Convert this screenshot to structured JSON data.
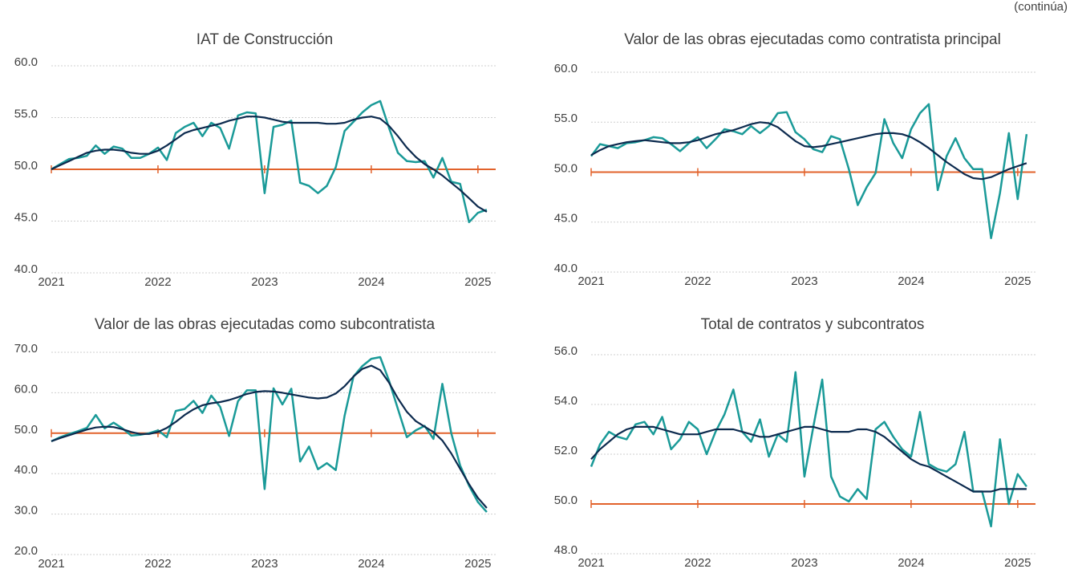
{
  "header": {
    "note": "(continúa)"
  },
  "chart_data": [
    {
      "type": "line",
      "title": "IAT de Construcción",
      "categories": [
        "2021",
        null,
        null,
        null,
        null,
        null,
        null,
        null,
        null,
        null,
        null,
        null,
        "2022",
        null,
        null,
        null,
        null,
        null,
        null,
        null,
        null,
        null,
        null,
        null,
        "2023",
        null,
        null,
        null,
        null,
        null,
        null,
        null,
        null,
        null,
        null,
        null,
        "2024",
        null,
        null,
        null,
        null,
        null,
        null,
        null,
        null,
        null,
        null,
        null,
        "2025",
        null
      ],
      "series": [
        {
          "color": "#1a9a98",
          "values": [
            50.0,
            50.5,
            51.0,
            51.1,
            51.3,
            52.3,
            51.5,
            52.2,
            52.0,
            51.1,
            51.1,
            51.5,
            52.1,
            50.9,
            53.5,
            54.1,
            54.5,
            53.2,
            54.5,
            54.0,
            52.0,
            55.2,
            55.5,
            55.4,
            47.7,
            54.1,
            54.3,
            54.7,
            48.7,
            48.4,
            47.7,
            48.4,
            50.2,
            53.7,
            54.6,
            55.5,
            56.2,
            56.6,
            54.0,
            51.6,
            50.8,
            50.7,
            50.8,
            49.2,
            51.1,
            48.8,
            48.6,
            44.9,
            45.8,
            46.1
          ]
        },
        {
          "color": "#0c2a4e",
          "values": [
            50.0,
            50.4,
            50.8,
            51.2,
            51.6,
            51.8,
            51.9,
            51.9,
            51.8,
            51.6,
            51.5,
            51.5,
            51.8,
            52.3,
            52.9,
            53.5,
            53.8,
            54.0,
            54.2,
            54.4,
            54.7,
            54.9,
            55.1,
            55.1,
            55.0,
            54.8,
            54.6,
            54.5,
            54.5,
            54.5,
            54.5,
            54.4,
            54.4,
            54.5,
            54.8,
            55.0,
            55.1,
            54.9,
            54.2,
            53.2,
            52.1,
            51.2,
            50.5,
            50.0,
            49.4,
            48.7,
            48.0,
            47.2,
            46.4,
            45.9
          ]
        }
      ],
      "ylim": [
        40,
        60
      ],
      "yticks": [
        {
          "value": 40,
          "label": "40.0"
        },
        {
          "value": 45,
          "label": "45.0"
        },
        {
          "value": 50,
          "label": "50.0"
        },
        {
          "value": 55,
          "label": "55.0"
        },
        {
          "value": 60,
          "label": "60.0"
        }
      ],
      "grid": true,
      "reference_line": {
        "value": 50,
        "color": "#e2622b"
      }
    },
    {
      "type": "line",
      "title": "Valor de las obras ejecutadas como contratista principal",
      "categories": [
        "2021",
        null,
        null,
        null,
        null,
        null,
        null,
        null,
        null,
        null,
        null,
        null,
        "2022",
        null,
        null,
        null,
        null,
        null,
        null,
        null,
        null,
        null,
        null,
        null,
        "2023",
        null,
        null,
        null,
        null,
        null,
        null,
        null,
        null,
        null,
        null,
        null,
        "2024",
        null,
        null,
        null,
        null,
        null,
        null,
        null,
        null,
        null,
        null,
        null,
        "2025",
        null
      ],
      "series": [
        {
          "color": "#1a9a98",
          "values": [
            51.6,
            52.8,
            52.6,
            52.4,
            52.9,
            53.0,
            53.2,
            53.5,
            53.4,
            52.8,
            52.1,
            52.9,
            53.5,
            52.4,
            53.3,
            54.3,
            54.1,
            53.8,
            54.6,
            53.9,
            54.6,
            55.9,
            56.0,
            54.0,
            53.3,
            52.3,
            52.0,
            53.6,
            53.3,
            50.3,
            46.7,
            48.5,
            49.9,
            55.3,
            52.9,
            51.4,
            54.3,
            55.9,
            56.8,
            48.2,
            51.6,
            53.4,
            51.4,
            50.3,
            50.3,
            43.4,
            47.9,
            53.9,
            47.3,
            53.8
          ]
        },
        {
          "color": "#0c2a4e",
          "values": [
            51.7,
            52.2,
            52.6,
            52.8,
            53.0,
            53.1,
            53.2,
            53.1,
            53.0,
            52.9,
            52.9,
            53.0,
            53.2,
            53.5,
            53.8,
            54.0,
            54.2,
            54.5,
            54.8,
            55.0,
            54.9,
            54.5,
            53.8,
            53.1,
            52.6,
            52.5,
            52.6,
            52.8,
            53.0,
            53.2,
            53.4,
            53.6,
            53.8,
            53.9,
            53.9,
            53.8,
            53.5,
            53.0,
            52.4,
            51.7,
            51.0,
            50.4,
            49.8,
            49.4,
            49.3,
            49.5,
            49.9,
            50.3,
            50.6,
            50.9
          ]
        }
      ],
      "ylim": [
        40,
        60
      ],
      "yticks": [
        {
          "value": 40,
          "label": "40.0"
        },
        {
          "value": 45,
          "label": "45.0"
        },
        {
          "value": 50,
          "label": "50.0"
        },
        {
          "value": 55,
          "label": "55.0"
        },
        {
          "value": 60,
          "label": "60.0"
        }
      ],
      "grid": true,
      "reference_line": {
        "value": 50,
        "color": "#e2622b"
      }
    },
    {
      "type": "line",
      "title": "Valor de las obras ejecutadas como subcontratista",
      "categories": [
        "2021",
        null,
        null,
        null,
        null,
        null,
        null,
        null,
        null,
        null,
        null,
        null,
        "2022",
        null,
        null,
        null,
        null,
        null,
        null,
        null,
        null,
        null,
        null,
        null,
        "2023",
        null,
        null,
        null,
        null,
        null,
        null,
        null,
        null,
        null,
        null,
        null,
        "2024",
        null,
        null,
        null,
        null,
        null,
        null,
        null,
        null,
        null,
        null,
        null,
        "2025",
        null
      ],
      "series": [
        {
          "color": "#1a9a98",
          "values": [
            48.0,
            49.0,
            49.8,
            50.5,
            51.3,
            54.5,
            51.2,
            52.6,
            51.2,
            49.4,
            49.6,
            50.0,
            50.7,
            49.0,
            55.5,
            56.0,
            58.0,
            55.0,
            59.3,
            56.5,
            49.3,
            57.9,
            60.6,
            60.6,
            36.2,
            61.1,
            57.1,
            61.0,
            43.0,
            46.7,
            41.1,
            42.6,
            40.9,
            54.3,
            64.0,
            66.6,
            68.4,
            68.8,
            63.0,
            56.0,
            49.0,
            50.7,
            51.8,
            48.6,
            62.2,
            50.0,
            42.0,
            37.0,
            33.0,
            30.5
          ]
        },
        {
          "color": "#0c2a4e",
          "values": [
            48.0,
            48.8,
            49.5,
            50.2,
            50.9,
            51.4,
            51.6,
            51.5,
            51.0,
            50.3,
            49.8,
            49.8,
            50.3,
            51.3,
            52.8,
            54.5,
            55.9,
            56.9,
            57.4,
            57.7,
            58.2,
            58.9,
            59.7,
            60.2,
            60.4,
            60.3,
            60.0,
            59.6,
            59.2,
            58.8,
            58.6,
            58.8,
            59.8,
            61.6,
            64.0,
            65.9,
            66.7,
            65.6,
            62.5,
            58.6,
            55.3,
            53.0,
            51.6,
            50.3,
            48.2,
            45.0,
            41.2,
            37.4,
            34.0,
            31.5
          ]
        }
      ],
      "ylim": [
        20,
        70
      ],
      "yticks": [
        {
          "value": 20,
          "label": "20.0"
        },
        {
          "value": 30,
          "label": "30.0"
        },
        {
          "value": 40,
          "label": "40.0"
        },
        {
          "value": 50,
          "label": "50.0"
        },
        {
          "value": 60,
          "label": "60.0"
        },
        {
          "value": 70,
          "label": "70.0"
        }
      ],
      "grid": true,
      "reference_line": {
        "value": 50,
        "color": "#e2622b"
      }
    },
    {
      "type": "line",
      "title": "Total de contratos y subcontratos",
      "categories": [
        "2021",
        null,
        null,
        null,
        null,
        null,
        null,
        null,
        null,
        null,
        null,
        null,
        "2022",
        null,
        null,
        null,
        null,
        null,
        null,
        null,
        null,
        null,
        null,
        null,
        "2023",
        null,
        null,
        null,
        null,
        null,
        null,
        null,
        null,
        null,
        null,
        null,
        "2024",
        null,
        null,
        null,
        null,
        null,
        null,
        null,
        null,
        null,
        null,
        null,
        "2025",
        null
      ],
      "series": [
        {
          "color": "#1a9a98",
          "values": [
            51.5,
            52.4,
            52.9,
            52.7,
            52.6,
            53.2,
            53.3,
            52.8,
            53.5,
            52.2,
            52.6,
            53.3,
            53.0,
            52.0,
            52.9,
            53.6,
            54.6,
            52.9,
            52.5,
            53.4,
            51.9,
            52.8,
            52.5,
            55.3,
            51.1,
            53.1,
            55.0,
            51.1,
            50.3,
            50.1,
            50.6,
            50.2,
            53.0,
            53.3,
            52.7,
            52.2,
            51.9,
            53.7,
            51.6,
            51.4,
            51.3,
            51.6,
            52.9,
            50.5,
            50.5,
            49.1,
            52.6,
            50.0,
            51.2,
            50.7
          ]
        },
        {
          "color": "#0c2a4e",
          "values": [
            51.8,
            52.2,
            52.5,
            52.8,
            53.0,
            53.1,
            53.1,
            53.1,
            53.0,
            52.9,
            52.8,
            52.8,
            52.8,
            52.9,
            53.0,
            53.0,
            53.0,
            52.9,
            52.8,
            52.7,
            52.7,
            52.8,
            52.9,
            53.0,
            53.1,
            53.1,
            53.0,
            52.9,
            52.9,
            52.9,
            53.0,
            53.0,
            52.9,
            52.7,
            52.4,
            52.1,
            51.8,
            51.6,
            51.5,
            51.3,
            51.1,
            50.9,
            50.7,
            50.5,
            50.5,
            50.5,
            50.6,
            50.6,
            50.6,
            50.6
          ]
        }
      ],
      "ylim": [
        48,
        56
      ],
      "yticks": [
        {
          "value": 48,
          "label": "48.0"
        },
        {
          "value": 50,
          "label": "50.0"
        },
        {
          "value": 52,
          "label": "52.0"
        },
        {
          "value": 54,
          "label": "54.0"
        },
        {
          "value": 56,
          "label": "56.0"
        }
      ],
      "grid": true,
      "reference_line": {
        "value": 50,
        "color": "#e2622b"
      }
    }
  ]
}
